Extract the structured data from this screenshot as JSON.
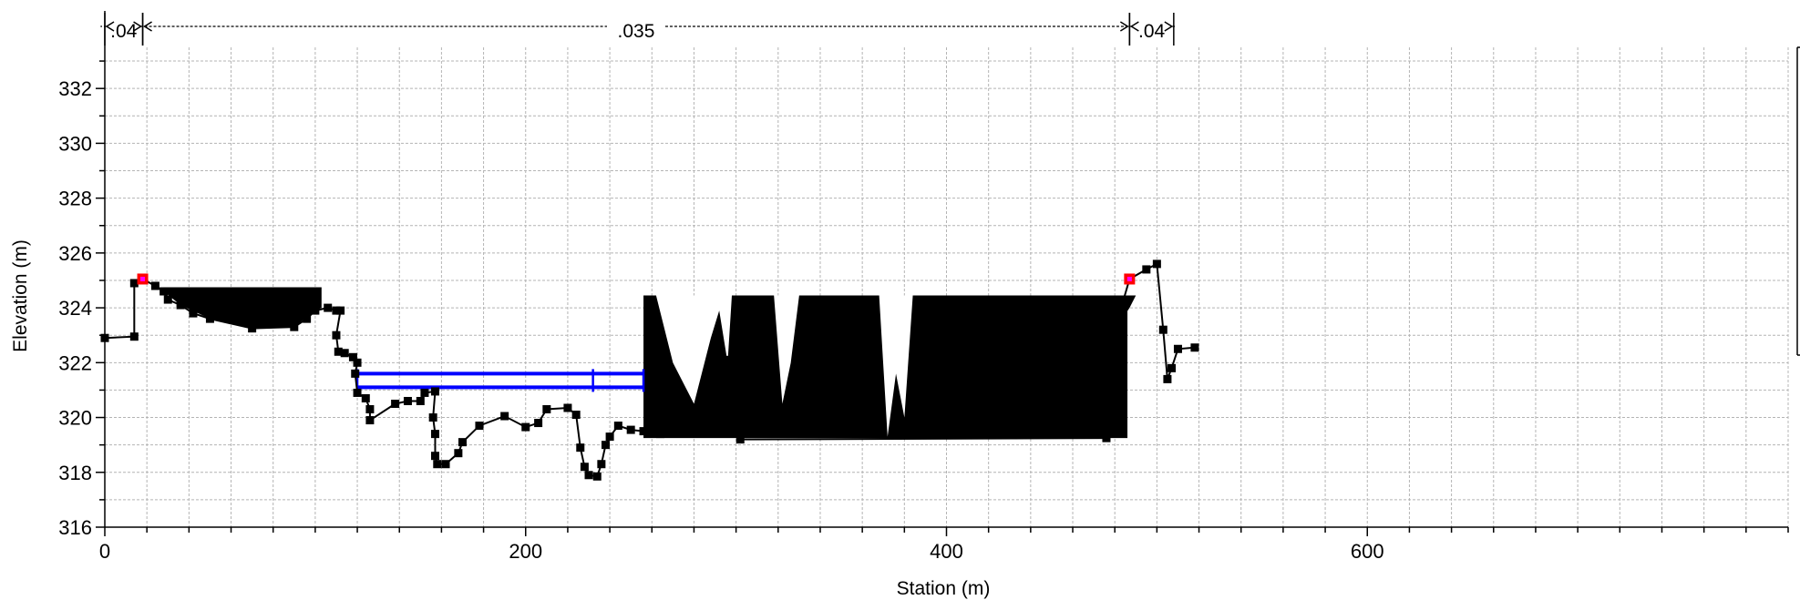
{
  "chart_data": {
    "type": "line",
    "title": "",
    "xlabel": "Station (m)",
    "ylabel": "Elevation (m)",
    "xlim": [
      0,
      800
    ],
    "ylim": [
      316,
      333.5
    ],
    "x_ticks": [
      0,
      200,
      400,
      600
    ],
    "y_ticks": [
      316,
      318,
      320,
      322,
      324,
      326,
      328,
      330,
      332
    ],
    "grid": true,
    "colors": {
      "ground": "#000000",
      "obstruction": "#000000",
      "bank_station": "#ff0000",
      "levee": "#ff00ff",
      "ineffective_area": "#0000ff",
      "grid": "#b4b4b4"
    },
    "manning_n": [
      {
        "label": ".04",
        "from": 0,
        "to": 18
      },
      {
        "label": ".035",
        "from": 18,
        "to": 487
      },
      {
        "label": ".04",
        "from": 487,
        "to": 508
      }
    ],
    "series": [
      {
        "points": [
          [
            0,
            322.9
          ],
          [
            14,
            322.95
          ],
          [
            14,
            324.9
          ],
          [
            18,
            325.05
          ],
          [
            24,
            324.8
          ],
          [
            28,
            324.6
          ],
          [
            30,
            324.3
          ],
          [
            36,
            324.1
          ],
          [
            42,
            323.8
          ],
          [
            50,
            323.6
          ],
          [
            70,
            323.25
          ],
          [
            90,
            323.3
          ],
          [
            96,
            323.6
          ],
          [
            100,
            323.9
          ],
          [
            106,
            324.0
          ],
          [
            110,
            323.9
          ],
          [
            112,
            323.9
          ],
          [
            110,
            323.0
          ],
          [
            111,
            322.4
          ],
          [
            114,
            322.35
          ],
          [
            118,
            322.2
          ],
          [
            120,
            322.0
          ],
          [
            119,
            321.6
          ],
          [
            120,
            320.9
          ],
          [
            124,
            320.7
          ],
          [
            126,
            320.3
          ],
          [
            126,
            319.9
          ],
          [
            138,
            320.5
          ],
          [
            144,
            320.6
          ],
          [
            150,
            320.6
          ],
          [
            152,
            320.9
          ],
          [
            157,
            320.95
          ],
          [
            156,
            320.0
          ],
          [
            157,
            319.4
          ],
          [
            157,
            318.6
          ],
          [
            158,
            318.3
          ],
          [
            162,
            318.3
          ],
          [
            168,
            318.7
          ],
          [
            170,
            319.1
          ],
          [
            178,
            319.7
          ],
          [
            190,
            320.05
          ],
          [
            200,
            319.65
          ],
          [
            206,
            319.8
          ],
          [
            210,
            320.3
          ],
          [
            220,
            320.35
          ],
          [
            224,
            320.1
          ],
          [
            226,
            318.9
          ],
          [
            228,
            318.2
          ],
          [
            230,
            317.9
          ],
          [
            234,
            317.85
          ],
          [
            236,
            318.3
          ],
          [
            238,
            319.0
          ],
          [
            240,
            319.3
          ],
          [
            244,
            319.7
          ],
          [
            250,
            319.55
          ],
          [
            256,
            319.5
          ],
          [
            260,
            319.45
          ],
          [
            264,
            319.4
          ],
          [
            270,
            319.5
          ],
          [
            286,
            320.8
          ],
          [
            292,
            321.9
          ],
          [
            295,
            322.1
          ],
          [
            296,
            320.6
          ],
          [
            302,
            319.2
          ],
          [
            476,
            319.25
          ],
          [
            480,
            323.2
          ],
          [
            487,
            325.05
          ],
          [
            495,
            325.4
          ],
          [
            500,
            325.6
          ],
          [
            503,
            323.2
          ],
          [
            505,
            321.4
          ],
          [
            507,
            321.8
          ],
          [
            510,
            322.5
          ],
          [
            518,
            322.55
          ]
        ]
      }
    ],
    "bank_stations": [
      [
        18,
        325.05
      ],
      [
        487,
        325.05
      ]
    ],
    "obstructions": [
      {
        "x": [
          28,
          103
        ],
        "top": 324.75,
        "bottom_points": [
          [
            28,
            324.6
          ],
          [
            36,
            324.1
          ],
          [
            50,
            323.6
          ],
          [
            70,
            323.25
          ],
          [
            90,
            323.3
          ],
          [
            100,
            323.9
          ],
          [
            103,
            324.0
          ]
        ]
      },
      {
        "x": [
          256,
          486
        ],
        "top": 324.45,
        "floor": 319.25,
        "gaps": [
          {
            "x": [
              262,
              298
            ],
            "bottom_points": [
              [
                262,
                324.45
              ],
              [
                270,
                322.0
              ],
              [
                280,
                320.5
              ],
              [
                288,
                322.9
              ],
              [
                292,
                323.9
              ],
              [
                296,
                322.0
              ],
              [
                298,
                324.45
              ]
            ]
          },
          {
            "x": [
              318,
              330
            ],
            "bottom_points": [
              [
                318,
                324.45
              ],
              [
                322,
                320.5
              ],
              [
                326,
                322.0
              ],
              [
                330,
                324.45
              ]
            ]
          },
          {
            "x": [
              368,
              384
            ],
            "bottom_points": [
              [
                368,
                324.45
              ],
              [
                372,
                319.3
              ],
              [
                376,
                321.6
              ],
              [
                380,
                320.0
              ],
              [
                384,
                324.45
              ]
            ]
          }
        ]
      },
      {
        "x": [
          476,
          490
        ],
        "top": 324.45,
        "bottom_points": [
          [
            476,
            324.45
          ],
          [
            480,
            323.2
          ],
          [
            487,
            324.0
          ],
          [
            490,
            324.45
          ]
        ]
      }
    ],
    "ineffective_areas": [
      {
        "x": [
          120,
          256
        ],
        "elevation": 321.6,
        "lower": 321.1,
        "marker_x": [
          120,
          232,
          256
        ]
      }
    ]
  }
}
